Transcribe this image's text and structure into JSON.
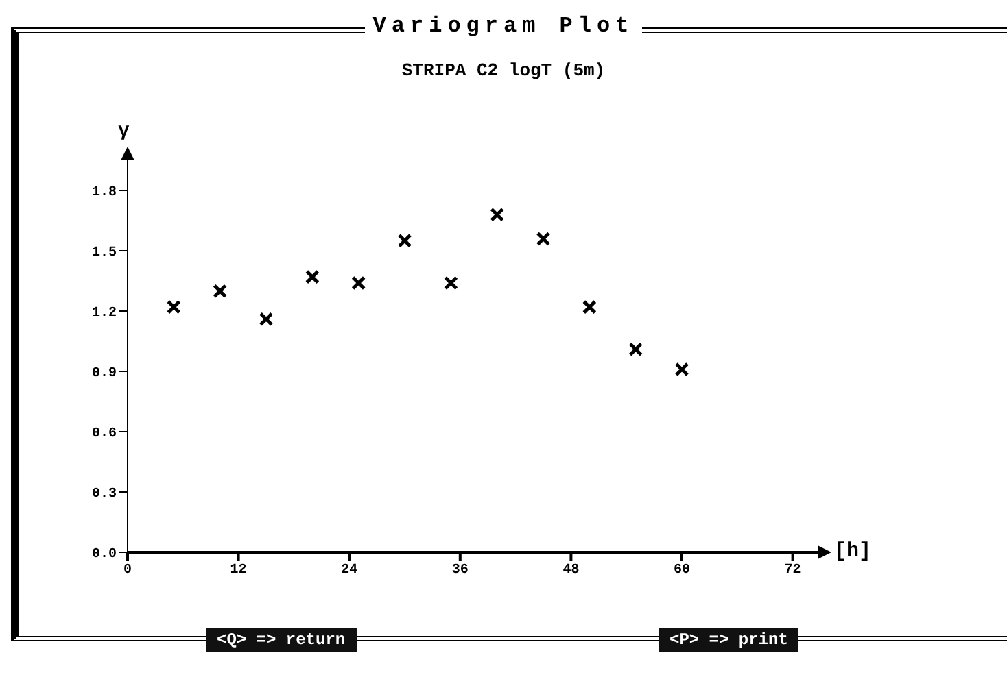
{
  "chart_data": {
    "type": "scatter",
    "title": "Variogram Plot",
    "subtitle": "STRIPA C2 logT (5m)",
    "xlabel": "[h]",
    "ylabel": "γ",
    "x": [
      5,
      10,
      15,
      20,
      25,
      30,
      35,
      40,
      45,
      50,
      55,
      60
    ],
    "series": [
      {
        "color": "#000000",
        "values": [
          1.22,
          1.3,
          1.16,
          1.37,
          1.34,
          1.55,
          1.34,
          1.68,
          1.56,
          1.22,
          1.01,
          0.91
        ]
      }
    ],
    "xlim": [
      0,
      75
    ],
    "ylim": [
      0,
      1.95
    ],
    "xticks": [
      0,
      12,
      24,
      36,
      48,
      60,
      72
    ],
    "yticks": [
      {
        "value": 0,
        "label": "0.0"
      },
      0.3,
      0.6,
      0.9,
      1.2,
      1.5,
      1.8
    ],
    "marker": "cross",
    "annotations": [
      "<Q> => return",
      "<P> => print"
    ]
  }
}
